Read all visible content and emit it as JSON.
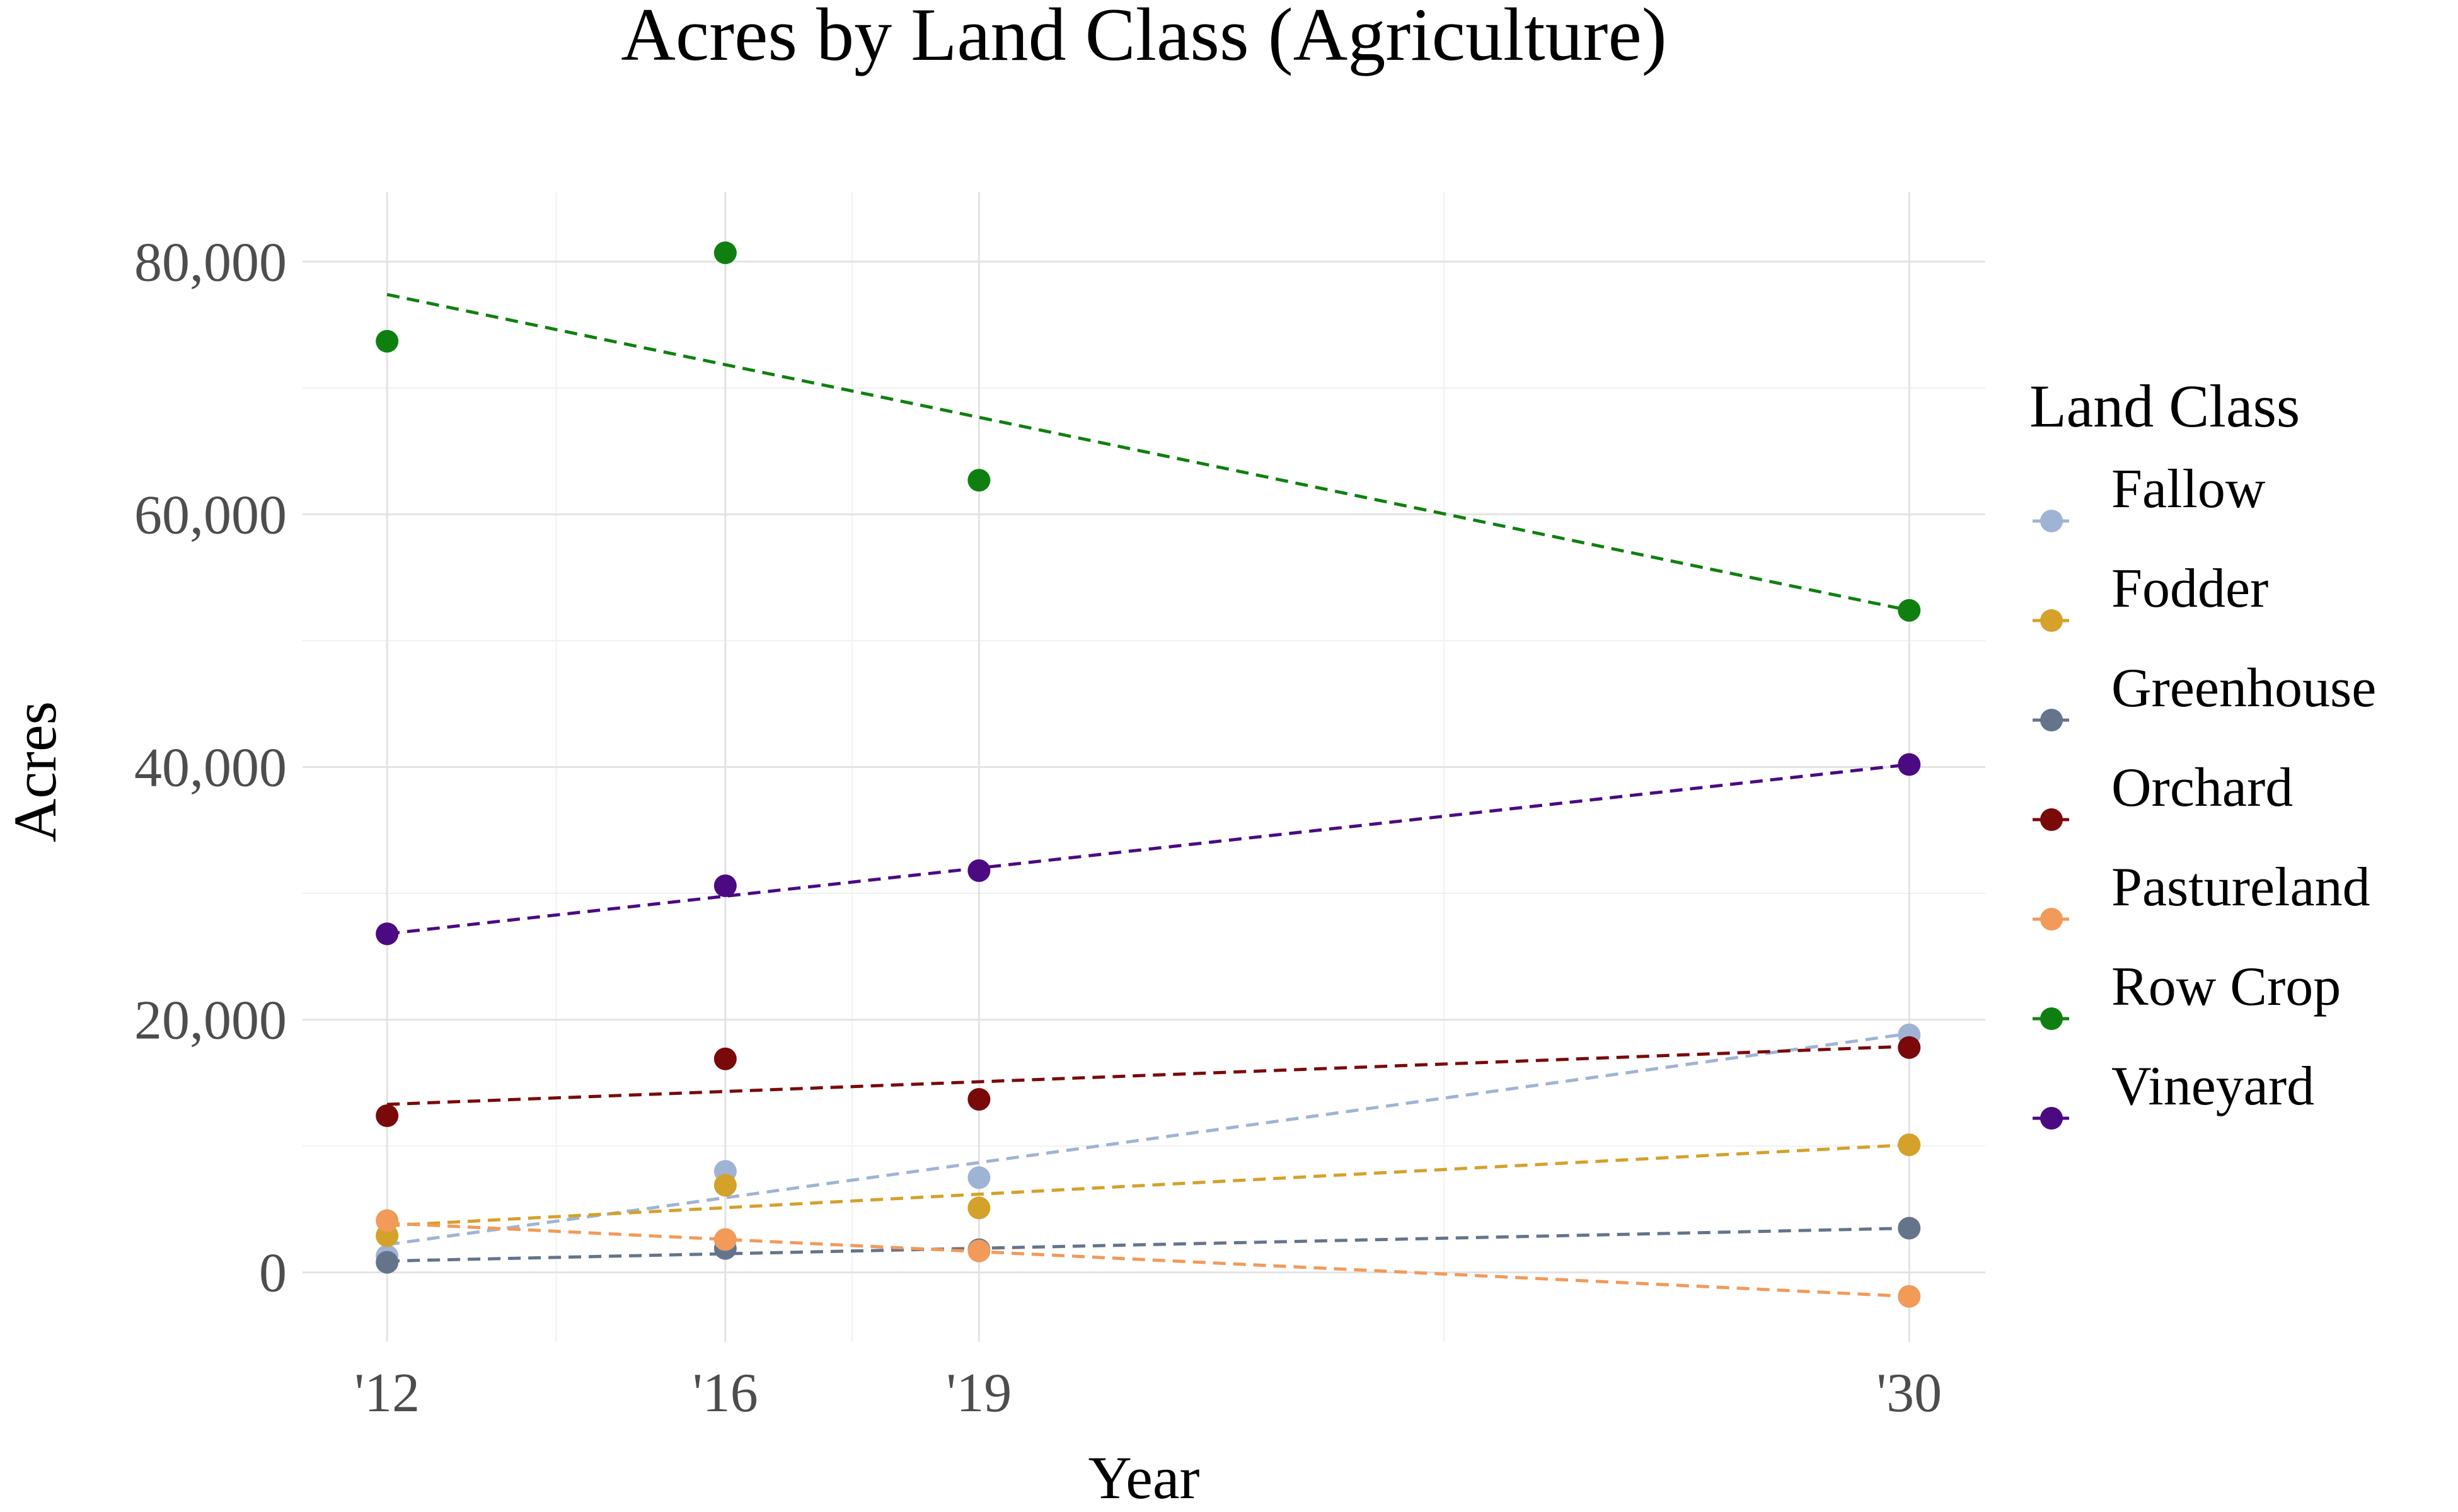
{
  "chart_data": {
    "type": "scatter",
    "title": "Acres by Land Class (Agriculture)",
    "xlabel": "Year",
    "ylabel": "Acres",
    "x_ticks": [
      {
        "value": 2012,
        "label": "'12"
      },
      {
        "value": 2016,
        "label": "'16"
      },
      {
        "value": 2019,
        "label": "'19"
      },
      {
        "value": 2030,
        "label": "'30"
      }
    ],
    "y_ticks": [
      {
        "value": 0,
        "label": "0"
      },
      {
        "value": 20000,
        "label": "20,000"
      },
      {
        "value": 40000,
        "label": "40,000"
      },
      {
        "value": 60000,
        "label": "60,000"
      },
      {
        "value": 80000,
        "label": "80,000"
      }
    ],
    "xlim": [
      2011.0,
      2030.9
    ],
    "ylim": [
      -5500,
      85500
    ],
    "grid": true,
    "legend": {
      "title": "Land Class",
      "position": "right"
    },
    "trend_lines": "dashed linear fit per series",
    "series": [
      {
        "name": "Fallow",
        "color": "#9fb4d4",
        "x": [
          2012,
          2016,
          2019,
          2030
        ],
        "y": [
          1300,
          8000,
          7500,
          18800
        ],
        "trend": [
          2012,
          2200,
          2030,
          18900
        ]
      },
      {
        "name": "Fodder",
        "color": "#d4a12a",
        "x": [
          2012,
          2016,
          2019,
          2030
        ],
        "y": [
          2900,
          6900,
          5100,
          10100
        ],
        "trend": [
          2012,
          3700,
          2030,
          10100
        ]
      },
      {
        "name": "Greenhouse",
        "color": "#64748b",
        "x": [
          2012,
          2016,
          2019,
          2030
        ],
        "y": [
          800,
          1900,
          1800,
          3500
        ],
        "trend": [
          2012,
          900,
          2030,
          3500
        ]
      },
      {
        "name": "Orchard",
        "color": "#7a0a0a",
        "x": [
          2012,
          2016,
          2019,
          2030
        ],
        "y": [
          12400,
          16900,
          13700,
          17800
        ],
        "trend": [
          2012,
          13300,
          2030,
          17900
        ]
      },
      {
        "name": "Pastureland",
        "color": "#f29a5a",
        "x": [
          2012,
          2016,
          2019,
          2030
        ],
        "y": [
          4100,
          2600,
          1700,
          -1900
        ],
        "trend": [
          2012,
          3900,
          2030,
          -1900
        ]
      },
      {
        "name": "Row Crop",
        "color": "#0f800f",
        "x": [
          2012,
          2016,
          2019,
          2030
        ],
        "y": [
          73700,
          80700,
          62700,
          52400
        ],
        "trend": [
          2012,
          77400,
          2030,
          52400
        ]
      },
      {
        "name": "Vineyard",
        "color": "#4b0a82",
        "x": [
          2012,
          2016,
          2019,
          2030
        ],
        "y": [
          26800,
          30600,
          31800,
          40200
        ],
        "trend": [
          2012,
          26800,
          2030,
          40200
        ]
      }
    ]
  }
}
